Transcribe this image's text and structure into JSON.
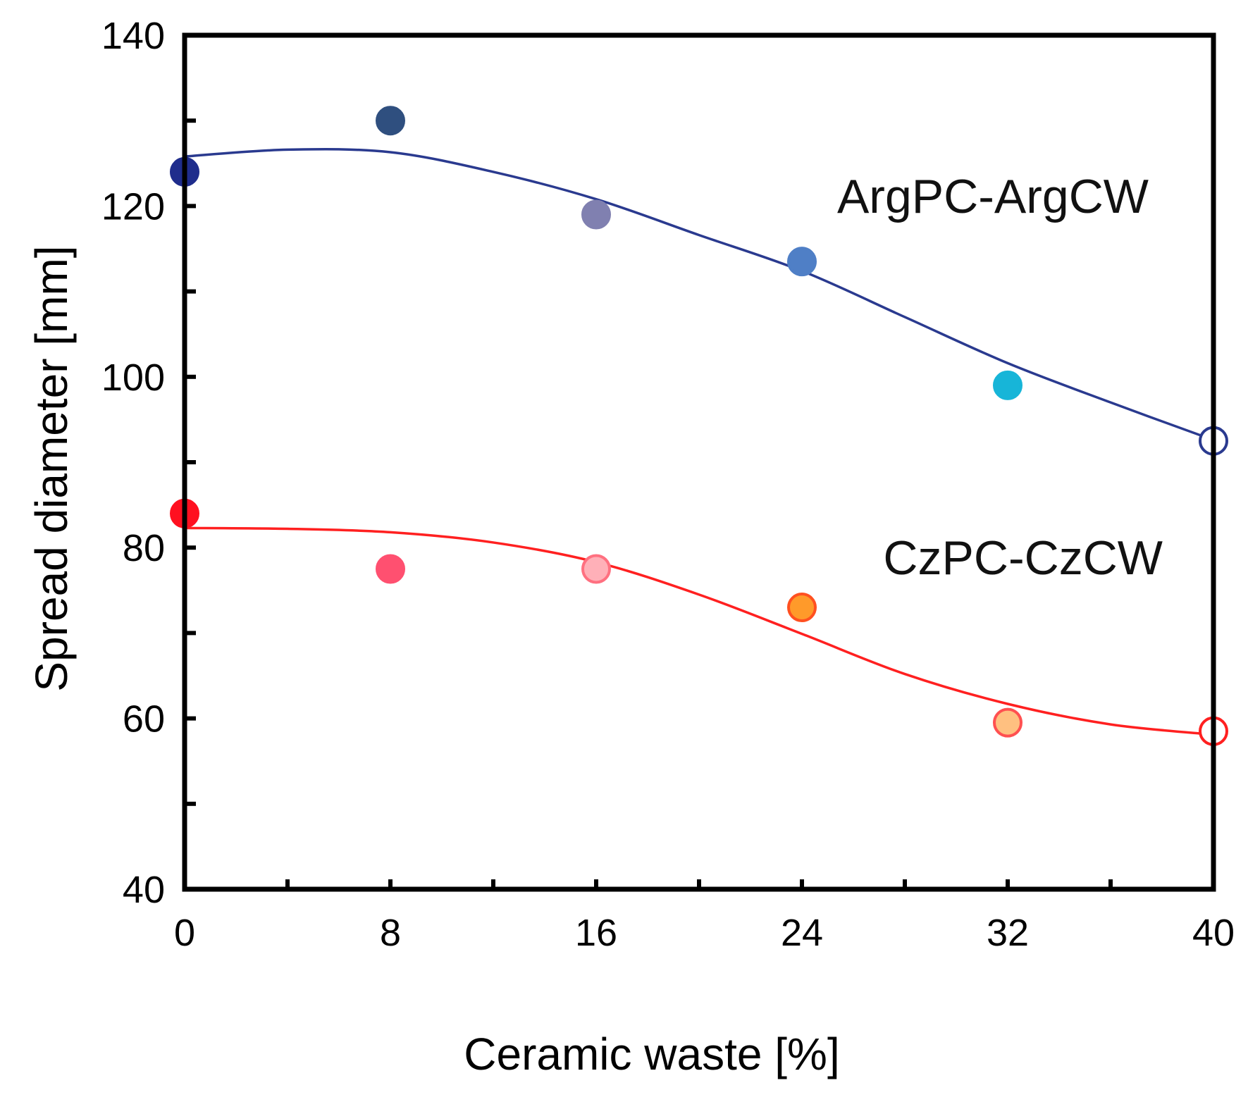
{
  "chart_data": {
    "type": "scatter",
    "title": "",
    "xlabel": "Ceramic waste [%]",
    "ylabel": "Spread diameter [mm]",
    "xlim": [
      0,
      40
    ],
    "ylim": [
      40,
      140
    ],
    "x_ticks": [
      0,
      8,
      16,
      24,
      32,
      40
    ],
    "x_tick_labels": [
      "0",
      "8",
      "16",
      "24",
      "32",
      "40"
    ],
    "y_ticks": [
      40,
      60,
      80,
      100,
      120,
      140
    ],
    "y_tick_labels": [
      "40",
      "60",
      "80",
      "100",
      "120",
      "140"
    ],
    "x_minor_step": 4,
    "y_minor_step": 10,
    "grid": false,
    "series": [
      {
        "name": "ArgPC-ArgCW",
        "line_color": "#2a3a8f",
        "x": [
          0,
          8,
          16,
          24,
          32,
          40
        ],
        "values": [
          124,
          130,
          119,
          113.5,
          99,
          92.5
        ],
        "marker_fills": [
          "#1f2d8c",
          "#2f4f7f",
          "#8080b0",
          "#4f7fc6",
          "#17b5d8",
          "#ffffff"
        ],
        "marker_strokes": [
          "#1f2d8c",
          "#2f4f7f",
          "#8080b0",
          "#4f7fc6",
          "#17b5d8",
          "#2a3a8f"
        ],
        "trend_x": [
          0,
          4,
          8,
          12,
          16,
          20,
          24,
          28,
          32,
          36,
          40
        ],
        "trend_y": [
          125.8,
          126.6,
          126.3,
          124.0,
          120.8,
          116.6,
          112.4,
          107.0,
          101.6,
          97.0,
          92.6
        ]
      },
      {
        "name": "CzPC-CzCW",
        "line_color": "#ff2020",
        "x": [
          0,
          8,
          16,
          24,
          32,
          40
        ],
        "values": [
          84,
          77.5,
          77.5,
          73,
          59.5,
          58.5
        ],
        "marker_fills": [
          "#ff1020",
          "#ff5070",
          "#ffb0b8",
          "#ff9a2a",
          "#ffc080",
          "#ffffff"
        ],
        "marker_strokes": [
          "#ff1020",
          "#ff5070",
          "#ff7080",
          "#ff5020",
          "#ff5050",
          "#ff2020"
        ],
        "trend_x": [
          0,
          4,
          8,
          12,
          16,
          20,
          24,
          28,
          32,
          36,
          40
        ],
        "trend_y": [
          82.3,
          82.2,
          81.8,
          80.6,
          78.3,
          74.5,
          69.9,
          65.2,
          61.7,
          59.3,
          58.1
        ]
      }
    ]
  }
}
